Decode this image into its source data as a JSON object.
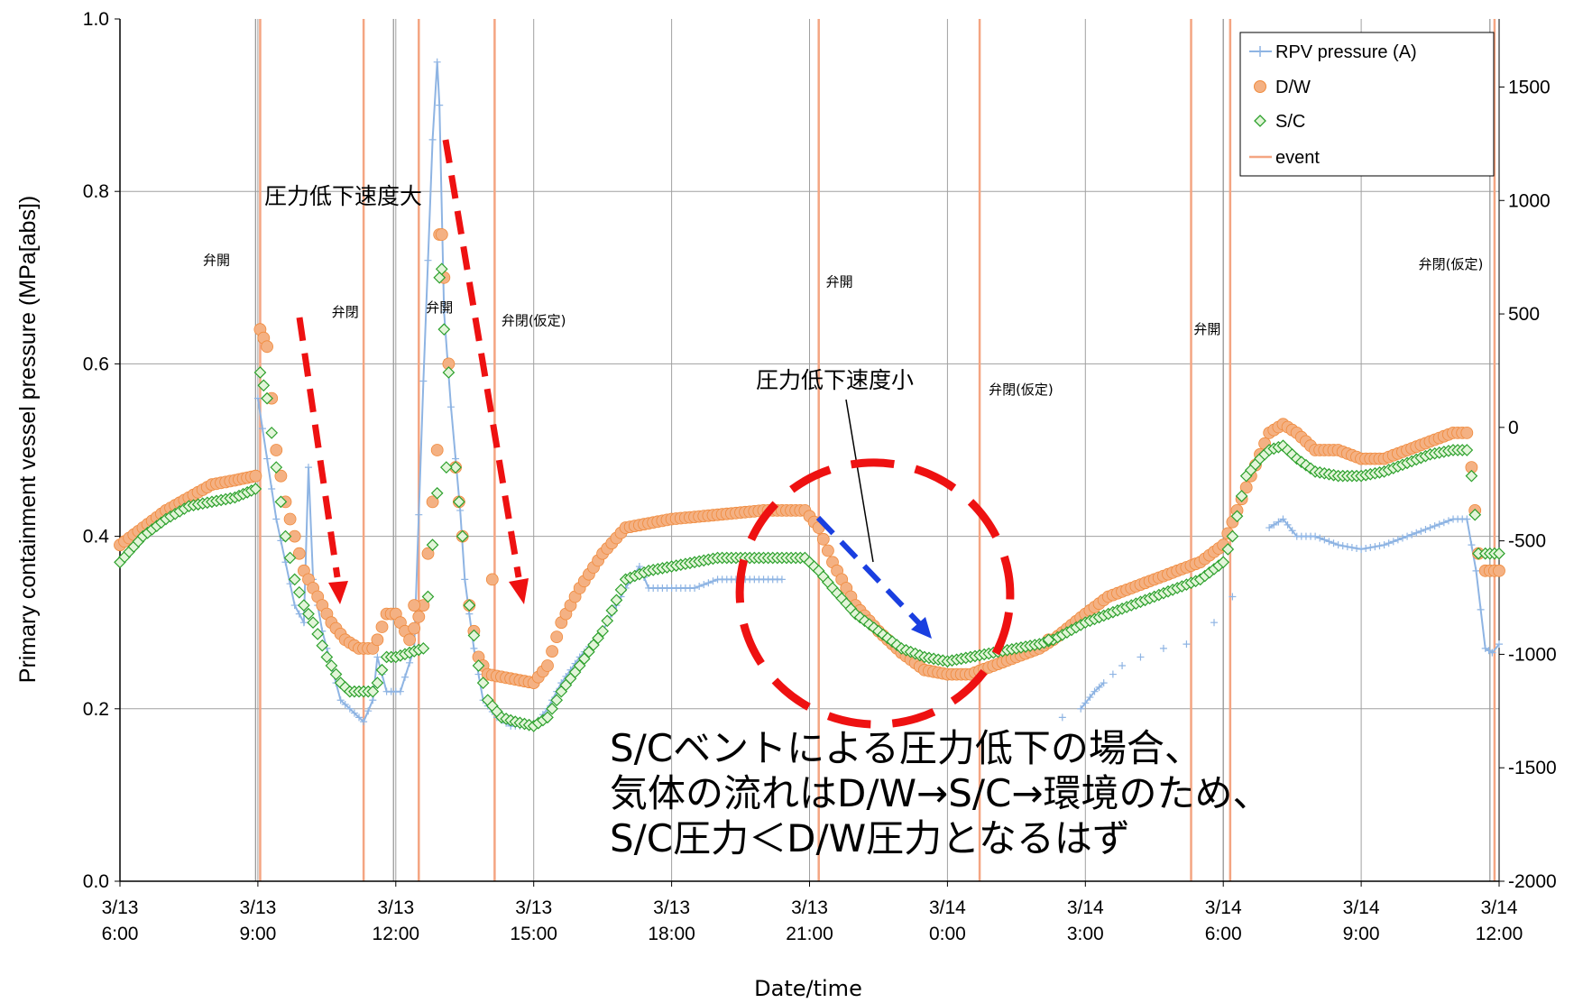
{
  "chart_data": {
    "type": "scatter",
    "xlabel": "Date/time",
    "ylabel": "Primary containment vessel pressure (MPa[abs])",
    "x_range_hours": [
      0,
      30
    ],
    "x_ticks": [
      {
        "h": 0,
        "date": "3/13",
        "time": "6:00"
      },
      {
        "h": 3,
        "date": "3/13",
        "time": "9:00"
      },
      {
        "h": 6,
        "date": "3/13",
        "time": "12:00"
      },
      {
        "h": 9,
        "date": "3/13",
        "time": "15:00"
      },
      {
        "h": 12,
        "date": "3/13",
        "time": "18:00"
      },
      {
        "h": 15,
        "date": "3/13",
        "time": "21:00"
      },
      {
        "h": 18,
        "date": "3/14",
        "time": "0:00"
      },
      {
        "h": 21,
        "date": "3/14",
        "time": "3:00"
      },
      {
        "h": 24,
        "date": "3/14",
        "time": "6:00"
      },
      {
        "h": 27,
        "date": "3/14",
        "time": "9:00"
      },
      {
        "h": 30,
        "date": "3/14",
        "time": "12:00"
      }
    ],
    "ylim": [
      0,
      1.0
    ],
    "y_ticks": [
      "0.0",
      "0.2",
      "0.4",
      "0.6",
      "0.8",
      "1.0"
    ],
    "y2lim": [
      -2000,
      1800
    ],
    "y2_ticks": [
      "-2000",
      "-1500",
      "-1000",
      "-500",
      "0",
      "500",
      "1000",
      "1500"
    ],
    "grid": true,
    "legend_position": "top-right",
    "legend": [
      "RPV pressure (A)",
      "D/W",
      "S/C",
      "event"
    ],
    "colors": {
      "rpv": "#8eb4e3",
      "dw": "#f4b183",
      "dw_edge": "#f08a3c",
      "sc_edge": "#2ca02c",
      "sc_fill": "#e3f5d9",
      "event": "#f4a582",
      "annot_red": "#ee1111",
      "annot_blue": "#1a3fe0"
    },
    "series": [
      {
        "name": "D/W",
        "anchors": [
          [
            0,
            0.39
          ],
          [
            0.5,
            0.41
          ],
          [
            1,
            0.43
          ],
          [
            1.5,
            0.445
          ],
          [
            2,
            0.46
          ],
          [
            2.5,
            0.465
          ],
          [
            2.95,
            0.47
          ],
          [
            3.05,
            0.64
          ],
          [
            3.2,
            0.62
          ],
          [
            3.4,
            0.5
          ],
          [
            3.6,
            0.44
          ],
          [
            3.8,
            0.4
          ],
          [
            4.0,
            0.36
          ],
          [
            4.3,
            0.33
          ],
          [
            4.6,
            0.3
          ],
          [
            4.9,
            0.28
          ],
          [
            5.2,
            0.27
          ],
          [
            5.5,
            0.27
          ],
          [
            5.6,
            0.28
          ],
          [
            5.8,
            0.31
          ],
          [
            6.0,
            0.31
          ],
          [
            6.1,
            0.3
          ],
          [
            6.3,
            0.28
          ],
          [
            6.6,
            0.32
          ],
          [
            6.9,
            0.5
          ],
          [
            6.95,
            0.75
          ],
          [
            7.0,
            0.75
          ],
          [
            7.05,
            0.7
          ],
          [
            7.15,
            0.6
          ],
          [
            7.3,
            0.48
          ],
          [
            7.45,
            0.4
          ],
          [
            7.6,
            0.32
          ],
          [
            7.8,
            0.26
          ],
          [
            8.0,
            0.24
          ],
          [
            8.5,
            0.235
          ],
          [
            9.0,
            0.23
          ],
          [
            9.3,
            0.25
          ],
          [
            9.6,
            0.3
          ],
          [
            10.0,
            0.34
          ],
          [
            10.5,
            0.38
          ],
          [
            11.0,
            0.41
          ],
          [
            12.0,
            0.42
          ],
          [
            13.0,
            0.425
          ],
          [
            14.0,
            0.43
          ],
          [
            14.9,
            0.43
          ],
          [
            15.2,
            0.41
          ],
          [
            15.5,
            0.37
          ],
          [
            16.0,
            0.32
          ],
          [
            16.5,
            0.29
          ],
          [
            17.0,
            0.265
          ],
          [
            17.5,
            0.245
          ],
          [
            18.0,
            0.24
          ],
          [
            18.5,
            0.24
          ],
          [
            19.0,
            0.25
          ],
          [
            19.5,
            0.26
          ],
          [
            20.0,
            0.27
          ],
          [
            20.3,
            0.28
          ],
          [
            21.0,
            0.31
          ],
          [
            21.5,
            0.33
          ],
          [
            22.0,
            0.34
          ],
          [
            23.0,
            0.36
          ],
          [
            23.5,
            0.37
          ],
          [
            24.0,
            0.39
          ],
          [
            24.3,
            0.43
          ],
          [
            24.6,
            0.47
          ],
          [
            25.0,
            0.52
          ],
          [
            25.3,
            0.53
          ],
          [
            25.6,
            0.52
          ],
          [
            26.0,
            0.5
          ],
          [
            26.5,
            0.5
          ],
          [
            27.0,
            0.49
          ],
          [
            27.5,
            0.49
          ],
          [
            28.0,
            0.5
          ],
          [
            28.5,
            0.51
          ],
          [
            29.0,
            0.52
          ],
          [
            29.3,
            0.52
          ],
          [
            29.4,
            0.48
          ],
          [
            29.55,
            0.38
          ],
          [
            29.7,
            0.36
          ],
          [
            30.0,
            0.36
          ]
        ],
        "extra_points": [
          [
            6.4,
            0.32
          ],
          [
            8.1,
            0.35
          ],
          [
            20.2,
            0.28
          ]
        ]
      },
      {
        "name": "S/C",
        "anchors": [
          [
            0,
            0.37
          ],
          [
            0.5,
            0.4
          ],
          [
            1,
            0.42
          ],
          [
            1.5,
            0.435
          ],
          [
            2,
            0.44
          ],
          [
            2.5,
            0.445
          ],
          [
            2.95,
            0.455
          ],
          [
            3.05,
            0.59
          ],
          [
            3.2,
            0.56
          ],
          [
            3.4,
            0.48
          ],
          [
            3.6,
            0.4
          ],
          [
            3.8,
            0.35
          ],
          [
            4.0,
            0.32
          ],
          [
            4.2,
            0.3
          ],
          [
            4.5,
            0.26
          ],
          [
            4.8,
            0.23
          ],
          [
            5.0,
            0.22
          ],
          [
            5.3,
            0.22
          ],
          [
            5.5,
            0.22
          ],
          [
            5.6,
            0.23
          ],
          [
            5.8,
            0.26
          ],
          [
            6.0,
            0.26
          ],
          [
            6.6,
            0.27
          ],
          [
            6.9,
            0.45
          ],
          [
            6.95,
            0.7
          ],
          [
            7.0,
            0.71
          ],
          [
            7.05,
            0.64
          ],
          [
            7.15,
            0.59
          ],
          [
            7.3,
            0.48
          ],
          [
            7.45,
            0.4
          ],
          [
            7.6,
            0.32
          ],
          [
            7.8,
            0.25
          ],
          [
            8.0,
            0.21
          ],
          [
            8.3,
            0.19
          ],
          [
            8.6,
            0.185
          ],
          [
            9.0,
            0.18
          ],
          [
            9.3,
            0.19
          ],
          [
            9.6,
            0.22
          ],
          [
            10.0,
            0.25
          ],
          [
            10.5,
            0.29
          ],
          [
            11.0,
            0.35
          ],
          [
            11.5,
            0.36
          ],
          [
            12.0,
            0.365
          ],
          [
            13.0,
            0.375
          ],
          [
            14.0,
            0.375
          ],
          [
            14.9,
            0.375
          ],
          [
            15.2,
            0.36
          ],
          [
            15.5,
            0.34
          ],
          [
            16.0,
            0.31
          ],
          [
            16.5,
            0.29
          ],
          [
            17.0,
            0.27
          ],
          [
            17.5,
            0.26
          ],
          [
            18.0,
            0.255
          ],
          [
            18.5,
            0.26
          ],
          [
            19.0,
            0.265
          ],
          [
            19.5,
            0.27
          ],
          [
            20.0,
            0.275
          ],
          [
            20.3,
            0.28
          ],
          [
            21.0,
            0.3
          ],
          [
            21.5,
            0.31
          ],
          [
            22.0,
            0.32
          ],
          [
            23.0,
            0.34
          ],
          [
            23.5,
            0.35
          ],
          [
            24.0,
            0.37
          ],
          [
            24.2,
            0.4
          ],
          [
            24.5,
            0.47
          ],
          [
            24.8,
            0.49
          ],
          [
            25.0,
            0.5
          ],
          [
            25.3,
            0.505
          ],
          [
            25.6,
            0.49
          ],
          [
            26.0,
            0.475
          ],
          [
            26.5,
            0.47
          ],
          [
            27.0,
            0.47
          ],
          [
            27.5,
            0.475
          ],
          [
            28.0,
            0.485
          ],
          [
            28.5,
            0.495
          ],
          [
            29.0,
            0.5
          ],
          [
            29.3,
            0.5
          ],
          [
            29.4,
            0.47
          ],
          [
            29.55,
            0.38
          ],
          [
            29.7,
            0.38
          ],
          [
            30.0,
            0.38
          ]
        ],
        "extra_points": [
          [
            7.1,
            0.48
          ],
          [
            20.2,
            0.28
          ]
        ]
      },
      {
        "name": "RPV pressure (A)",
        "segments": [
          [
            [
              3.0,
              0.56
            ],
            [
              3.2,
              0.49
            ],
            [
              3.4,
              0.42
            ],
            [
              3.6,
              0.37
            ],
            [
              3.8,
              0.32
            ],
            [
              4.0,
              0.3
            ],
            [
              4.1,
              0.48
            ],
            [
              4.2,
              0.35
            ],
            [
              4.4,
              0.29
            ],
            [
              4.6,
              0.25
            ],
            [
              4.8,
              0.21
            ],
            [
              5.0,
              0.2
            ],
            [
              5.3,
              0.185
            ],
            [
              5.5,
              0.21
            ],
            [
              5.6,
              0.26
            ],
            [
              5.8,
              0.22
            ],
            [
              6.0,
              0.22
            ],
            [
              6.1,
              0.22
            ],
            [
              6.4,
              0.27
            ],
            [
              6.6,
              0.58
            ],
            [
              6.8,
              0.86
            ],
            [
              6.9,
              0.95
            ],
            [
              6.95,
              0.9
            ],
            [
              7.05,
              0.66
            ],
            [
              7.2,
              0.55
            ],
            [
              7.4,
              0.43
            ],
            [
              7.5,
              0.35
            ],
            [
              7.7,
              0.27
            ],
            [
              7.9,
              0.21
            ],
            [
              8.2,
              0.19
            ],
            [
              8.5,
              0.18
            ],
            [
              9.0,
              0.18
            ],
            [
              9.3,
              0.2
            ],
            [
              9.6,
              0.23
            ],
            [
              10.0,
              0.26
            ],
            [
              10.5,
              0.29
            ],
            [
              11.0,
              0.34
            ],
            [
              11.3,
              0.365
            ],
            [
              11.5,
              0.34
            ],
            [
              12.0,
              0.34
            ],
            [
              12.5,
              0.34
            ],
            [
              13.0,
              0.35
            ],
            [
              13.5,
              0.35
            ],
            [
              14.0,
              0.35
            ],
            [
              14.4,
              0.35
            ]
          ],
          [
            [
              20.9,
              0.2
            ],
            [
              21.2,
              0.22
            ],
            [
              21.4,
              0.23
            ]
          ],
          [
            [
              25.0,
              0.41
            ],
            [
              25.3,
              0.42
            ],
            [
              25.6,
              0.4
            ],
            [
              26.0,
              0.4
            ],
            [
              26.5,
              0.39
            ],
            [
              27.0,
              0.385
            ],
            [
              27.5,
              0.39
            ],
            [
              28.0,
              0.4
            ],
            [
              28.5,
              0.41
            ],
            [
              29.0,
              0.42
            ],
            [
              29.3,
              0.42
            ],
            [
              29.5,
              0.36
            ],
            [
              29.7,
              0.27
            ],
            [
              29.85,
              0.265
            ],
            [
              30.0,
              0.275
            ]
          ]
        ],
        "scatter_points": [
          [
            20.5,
            0.19
          ],
          [
            21.6,
            0.24
          ],
          [
            21.8,
            0.25
          ],
          [
            22.2,
            0.26
          ],
          [
            22.7,
            0.27
          ],
          [
            23.2,
            0.275
          ],
          [
            23.8,
            0.3
          ],
          [
            24.2,
            0.33
          ]
        ]
      }
    ],
    "event_lines_red": [
      3.05,
      5.3,
      6.5,
      8.15,
      15.2,
      18.7,
      23.3,
      24.15,
      29.9
    ],
    "event_lines_gray": [
      2.95,
      5.95,
      24.0,
      29.8
    ],
    "event_labels": [
      {
        "text": "弁開",
        "x": 2.1,
        "y": 0.715
      },
      {
        "text": "弁閉",
        "x": 4.9,
        "y": 0.655
      },
      {
        "text": "弁開",
        "x": 6.95,
        "y": 0.66
      },
      {
        "text": "弁閉(仮定)",
        "x": 9.0,
        "y": 0.645
      },
      {
        "text": "弁開",
        "x": 15.65,
        "y": 0.69
      },
      {
        "text": "弁閉(仮定)",
        "x": 19.6,
        "y": 0.565
      },
      {
        "text": "弁開",
        "x": 23.65,
        "y": 0.635
      },
      {
        "text": "弁閉(仮定)",
        "x": 28.95,
        "y": 0.71
      }
    ]
  },
  "annotations": {
    "callout_large": "圧力低下速度大",
    "callout_small": "圧力低下速度小",
    "note_line1": "S/Cベントによる圧力低下の場合、",
    "note_line2": "気体の流れはD/W→S/C→環境のため、",
    "note_line3": "S/C圧力＜D/W圧力となるはず"
  }
}
